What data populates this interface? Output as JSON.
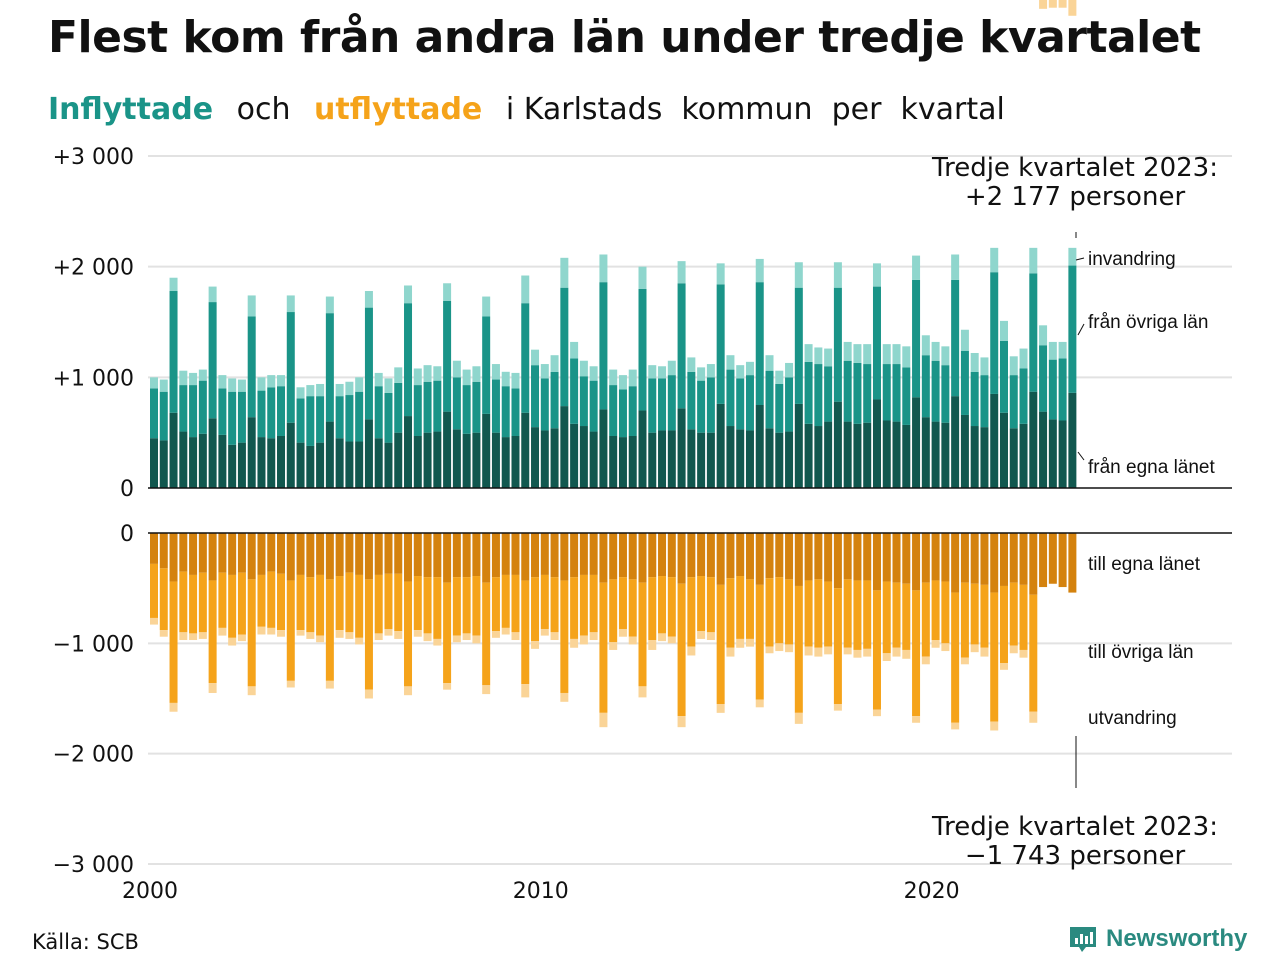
{
  "title": "Flest kom från andra län under tredje kvartalet",
  "subtitle": {
    "in_word": "Inflyttade",
    "and": "och",
    "out_word": "utflyttade",
    "rest": "i Karlstads  kommun  per  kvartal"
  },
  "source": "Källa: SCB",
  "logo": "Newsworthy",
  "colors": {
    "in_own": "#11584f",
    "in_other": "#1a9488",
    "in_immig": "#8fd6cd",
    "out_own": "#d4820e",
    "out_other": "#f5a31a",
    "out_emig": "#fad497"
  },
  "chart_data": {
    "type": "bar",
    "stacked": true,
    "quarters_start": "2000 Q1",
    "quarters_end": "2023 Q3",
    "y_ticks_top": [
      "+3 000",
      "+2 000",
      "+1 000",
      "0"
    ],
    "y_ticks_bottom": [
      "0",
      "−1 000",
      "−2 000",
      "−3 000"
    ],
    "ylim_top": [
      0,
      3000
    ],
    "ylim_bottom": [
      -3000,
      0
    ],
    "x_ticks": [
      "2000",
      "2010",
      "2020"
    ],
    "grid": true,
    "series_labels": {
      "in_immig": "invandring",
      "in_other": "från övriga län",
      "in_own": "från egna länet",
      "out_own": "till egna länet",
      "out_other": "till övriga län",
      "out_emig": "utvandring"
    },
    "annotation_top": [
      "Tredje kvartalet 2023:",
      "+2 177 personer"
    ],
    "annotation_bottom": [
      "Tredje kvartalet 2023:",
      "−1 743 personer"
    ],
    "in_own": [
      450,
      430,
      680,
      510,
      460,
      490,
      630,
      480,
      390,
      410,
      640,
      460,
      450,
      470,
      590,
      410,
      380,
      410,
      600,
      450,
      420,
      420,
      620,
      450,
      410,
      500,
      650,
      470,
      500,
      510,
      690,
      530,
      490,
      500,
      670,
      500,
      460,
      470,
      680,
      550,
      520,
      540,
      740,
      580,
      560,
      510,
      710,
      470,
      460,
      470,
      700,
      500,
      520,
      520,
      720,
      530,
      500,
      500,
      760,
      560,
      530,
      520,
      750,
      540,
      500,
      510,
      760,
      580,
      560,
      600,
      780,
      600,
      580,
      590,
      800,
      610,
      600,
      570,
      820,
      640,
      600,
      590,
      830,
      660,
      560,
      550,
      850,
      680,
      540,
      580,
      870,
      690,
      620,
      610,
      860
    ],
    "in_other": [
      450,
      440,
      1100,
      420,
      470,
      480,
      1050,
      420,
      480,
      460,
      910,
      420,
      460,
      450,
      1000,
      400,
      450,
      420,
      980,
      380,
      420,
      450,
      1010,
      470,
      450,
      450,
      1020,
      460,
      460,
      460,
      1000,
      470,
      440,
      460,
      880,
      480,
      460,
      430,
      990,
      560,
      470,
      510,
      1070,
      590,
      450,
      460,
      1150,
      460,
      430,
      450,
      1100,
      490,
      470,
      500,
      1130,
      520,
      470,
      500,
      1080,
      510,
      460,
      500,
      1110,
      520,
      440,
      490,
      1050,
      560,
      560,
      500,
      1030,
      550,
      550,
      530,
      1020,
      510,
      520,
      520,
      1060,
      560,
      550,
      520,
      1050,
      580,
      490,
      470,
      1100,
      650,
      480,
      500,
      1070,
      600,
      540,
      560,
      1150
    ],
    "in_immig": [
      100,
      110,
      120,
      130,
      110,
      100,
      140,
      120,
      120,
      110,
      190,
      120,
      110,
      100,
      150,
      100,
      100,
      110,
      150,
      110,
      120,
      130,
      150,
      120,
      130,
      140,
      160,
      150,
      150,
      130,
      160,
      150,
      140,
      140,
      180,
      140,
      130,
      140,
      250,
      140,
      130,
      150,
      270,
      150,
      140,
      130,
      250,
      140,
      130,
      150,
      200,
      120,
      110,
      130,
      200,
      130,
      120,
      120,
      190,
      130,
      120,
      120,
      210,
      140,
      120,
      130,
      230,
      160,
      150,
      160,
      230,
      170,
      170,
      180,
      210,
      180,
      180,
      190,
      220,
      180,
      170,
      170,
      230,
      190,
      170,
      160,
      220,
      180,
      170,
      180,
      230,
      180,
      160,
      150,
      160
    ],
    "out_own": [
      280,
      320,
      440,
      350,
      380,
      360,
      430,
      360,
      380,
      360,
      420,
      380,
      350,
      370,
      430,
      380,
      400,
      380,
      420,
      390,
      360,
      380,
      420,
      380,
      370,
      370,
      440,
      390,
      400,
      400,
      450,
      400,
      400,
      390,
      450,
      400,
      380,
      380,
      430,
      400,
      380,
      400,
      430,
      400,
      380,
      380,
      450,
      420,
      400,
      420,
      450,
      400,
      390,
      400,
      460,
      400,
      390,
      400,
      470,
      410,
      390,
      420,
      470,
      410,
      400,
      420,
      480,
      430,
      420,
      440,
      500,
      420,
      430,
      430,
      520,
      440,
      450,
      460,
      520,
      450,
      430,
      440,
      540,
      450,
      460,
      470,
      540,
      480,
      450,
      470,
      560,
      490,
      460,
      490,
      540
    ],
    "out_other": [
      490,
      560,
      1100,
      550,
      530,
      540,
      930,
      500,
      570,
      560,
      970,
      470,
      510,
      510,
      910,
      500,
      500,
      550,
      920,
      490,
      540,
      570,
      1000,
      530,
      500,
      520,
      950,
      490,
      510,
      560,
      910,
      530,
      510,
      540,
      930,
      490,
      480,
      520,
      940,
      580,
      490,
      500,
      1020,
      560,
      550,
      520,
      1180,
      570,
      470,
      520,
      940,
      570,
      520,
      540,
      1200,
      630,
      500,
      500,
      1080,
      630,
      570,
      540,
      1040,
      620,
      600,
      590,
      1150,
      600,
      620,
      590,
      1050,
      620,
      630,
      620,
      1080,
      650,
      590,
      600,
      1140,
      670,
      540,
      560,
      1180,
      680,
      550,
      570,
      1170,
      700,
      570,
      590,
      1060
    ],
    "out_emig": [
      60,
      60,
      80,
      70,
      60,
      60,
      90,
      70,
      70,
      60,
      80,
      70,
      60,
      60,
      60,
      50,
      60,
      60,
      70,
      70,
      60,
      60,
      80,
      60,
      60,
      70,
      80,
      60,
      70,
      60,
      60,
      60,
      60,
      70,
      80,
      60,
      60,
      70,
      120,
      70,
      60,
      70,
      80,
      80,
      80,
      70,
      130,
      70,
      70,
      70,
      100,
      90,
      70,
      60,
      100,
      80,
      70,
      70,
      80,
      80,
      80,
      70,
      70,
      60,
      70,
      70,
      100,
      80,
      80,
      70,
      60,
      60,
      70,
      70,
      60,
      70,
      80,
      80,
      60,
      70,
      70,
      70,
      60,
      60,
      70,
      80,
      80,
      60,
      70,
      70,
      100,
      80,
      70,
      70,
      143
    ]
  }
}
